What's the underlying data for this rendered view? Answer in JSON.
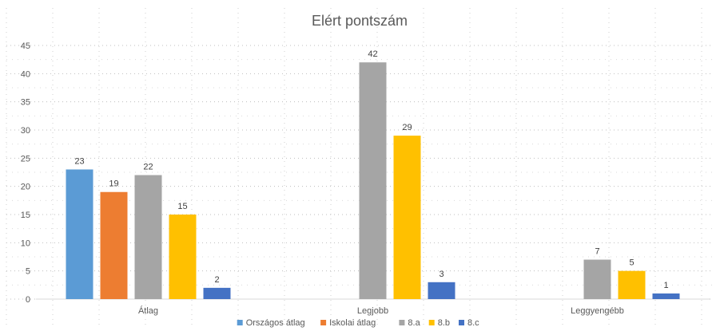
{
  "chart_data": {
    "type": "bar",
    "title": "Elért pontszám",
    "categories": [
      "Átlag",
      "Legjobb",
      "Leggyengébb"
    ],
    "series": [
      {
        "name": "Országos átlag",
        "color": "#5B9BD5",
        "values": [
          23,
          null,
          null
        ]
      },
      {
        "name": "Iskolai átlag",
        "color": "#ED7D31",
        "values": [
          19,
          null,
          null
        ]
      },
      {
        "name": "8.a",
        "color": "#A5A5A5",
        "values": [
          22,
          42,
          7
        ]
      },
      {
        "name": "8.b",
        "color": "#FFC000",
        "values": [
          15,
          29,
          5
        ]
      },
      {
        "name": "8.c",
        "color": "#4472C4",
        "values": [
          2,
          3,
          1
        ]
      }
    ],
    "ylim": [
      0,
      45
    ],
    "yticks": [
      0,
      5,
      10,
      15,
      20,
      25,
      30,
      35,
      40,
      45
    ],
    "xlabel": "",
    "ylabel": "",
    "grid": "dotted",
    "legend_position": "bottom"
  }
}
